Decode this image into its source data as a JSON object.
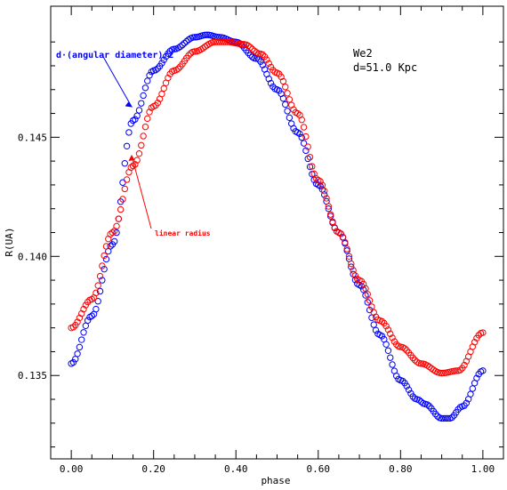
{
  "chart_data": {
    "type": "scatter",
    "title": "",
    "xlabel": "phase",
    "ylabel": "R(UA)",
    "xlim": [
      -0.05,
      1.05
    ],
    "ylim": [
      0.1315,
      0.1505
    ],
    "x_ticks": [
      {
        "value": 0.0,
        "label": "0.00"
      },
      {
        "value": 0.2,
        "label": "0.20"
      },
      {
        "value": 0.4,
        "label": "0.40"
      },
      {
        "value": 0.6,
        "label": "0.60"
      },
      {
        "value": 0.8,
        "label": "0.80"
      },
      {
        "value": 1.0,
        "label": "1.00"
      }
    ],
    "y_ticks": [
      {
        "value": 0.135,
        "label": "0.135"
      },
      {
        "value": 0.14,
        "label": "0.140"
      },
      {
        "value": 0.145,
        "label": "0.145"
      }
    ],
    "grid": false,
    "colors": {
      "blue": "#0000ff",
      "red": "#ff0000",
      "axis": "#000000"
    },
    "series": [
      {
        "name": "d·(angular diameter)/2",
        "color": "#0000ff",
        "marker": "open-circle",
        "points": [
          [
            0.0,
            0.1355
          ],
          [
            0.05,
            0.1375
          ],
          [
            0.1,
            0.1405
          ],
          [
            0.15,
            0.1457
          ],
          [
            0.2,
            0.1478
          ],
          [
            0.25,
            0.1487
          ],
          [
            0.3,
            0.1492
          ],
          [
            0.33,
            0.1493
          ],
          [
            0.36,
            0.1492
          ],
          [
            0.4,
            0.149
          ],
          [
            0.45,
            0.1483
          ],
          [
            0.5,
            0.147
          ],
          [
            0.55,
            0.1452
          ],
          [
            0.6,
            0.143
          ],
          [
            0.65,
            0.141
          ],
          [
            0.7,
            0.1388
          ],
          [
            0.75,
            0.1367
          ],
          [
            0.8,
            0.1348
          ],
          [
            0.84,
            0.134
          ],
          [
            0.86,
            0.1338
          ],
          [
            0.9,
            0.1332
          ],
          [
            0.92,
            0.1332
          ],
          [
            0.95,
            0.1337
          ],
          [
            1.0,
            0.1352
          ]
        ]
      },
      {
        "name": "linear radius",
        "color": "#ff0000",
        "marker": "open-circle",
        "points": [
          [
            0.0,
            0.137
          ],
          [
            0.05,
            0.1382
          ],
          [
            0.1,
            0.141
          ],
          [
            0.15,
            0.1438
          ],
          [
            0.2,
            0.1463
          ],
          [
            0.25,
            0.1478
          ],
          [
            0.3,
            0.1486
          ],
          [
            0.35,
            0.149
          ],
          [
            0.38,
            0.149
          ],
          [
            0.42,
            0.1489
          ],
          [
            0.46,
            0.1485
          ],
          [
            0.5,
            0.1477
          ],
          [
            0.55,
            0.146
          ],
          [
            0.6,
            0.1432
          ],
          [
            0.65,
            0.141
          ],
          [
            0.7,
            0.139
          ],
          [
            0.75,
            0.1373
          ],
          [
            0.8,
            0.1362
          ],
          [
            0.85,
            0.1355
          ],
          [
            0.9,
            0.1351
          ],
          [
            0.94,
            0.1352
          ],
          [
            1.0,
            0.1368
          ]
        ]
      }
    ],
    "annotations": {
      "star": "We2",
      "distance": "d=51.0 Kpc",
      "blue_label": "d·(angular diameter)/2",
      "red_label": "linear radius"
    }
  }
}
